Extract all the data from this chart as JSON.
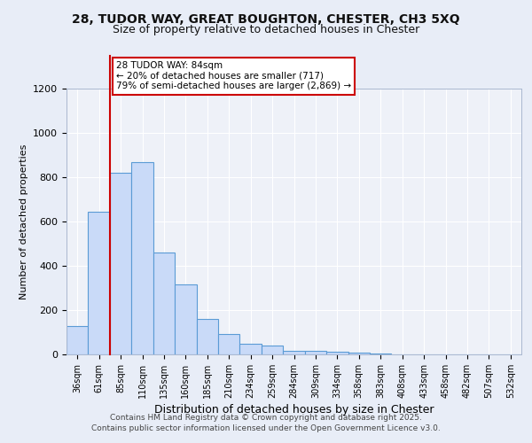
{
  "title1": "28, TUDOR WAY, GREAT BOUGHTON, CHESTER, CH3 5XQ",
  "title2": "Size of property relative to detached houses in Chester",
  "xlabel": "Distribution of detached houses by size in Chester",
  "ylabel": "Number of detached properties",
  "bar_labels": [
    "36sqm",
    "61sqm",
    "85sqm",
    "110sqm",
    "135sqm",
    "160sqm",
    "185sqm",
    "210sqm",
    "234sqm",
    "259sqm",
    "284sqm",
    "309sqm",
    "334sqm",
    "358sqm",
    "383sqm",
    "408sqm",
    "433sqm",
    "458sqm",
    "482sqm",
    "507sqm",
    "532sqm"
  ],
  "bar_values": [
    130,
    645,
    820,
    870,
    460,
    315,
    160,
    93,
    50,
    40,
    18,
    15,
    12,
    10,
    3,
    2,
    1,
    1,
    0,
    0,
    0
  ],
  "bar_color": "#c9daf8",
  "bar_edge_color": "#5b9bd5",
  "vline_color": "#cc0000",
  "annotation_title": "28 TUDOR WAY: 84sqm",
  "annotation_line1": "← 20% of detached houses are smaller (717)",
  "annotation_line2": "79% of semi-detached houses are larger (2,869) →",
  "annotation_box_color": "#ffffff",
  "annotation_box_edge": "#cc0000",
  "ylim": [
    0,
    1200
  ],
  "yticks": [
    0,
    200,
    400,
    600,
    800,
    1000,
    1200
  ],
  "bg_color": "#e8edf7",
  "plot_bg_color": "#eef1f8",
  "grid_color": "#ffffff",
  "footer1": "Contains HM Land Registry data © Crown copyright and database right 2025.",
  "footer2": "Contains public sector information licensed under the Open Government Licence v3.0."
}
